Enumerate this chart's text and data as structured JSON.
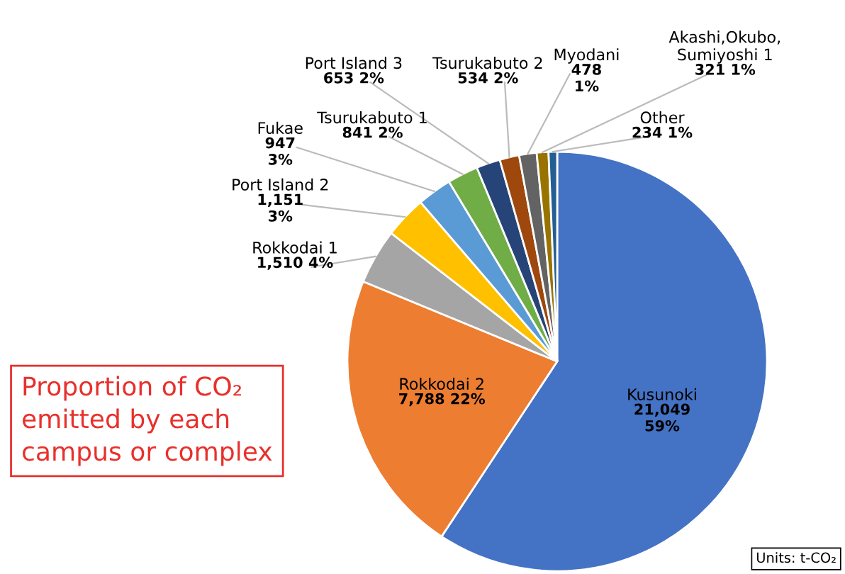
{
  "chart_data": {
    "type": "pie",
    "categories": [
      "Kusunoki",
      "Rokkodai 2",
      "Rokkodai 1",
      "Port Island 2",
      "Fukae",
      "Tsurukabuto 1",
      "Port Island 3",
      "Tsurukabuto 2",
      "Myodani",
      "Akashi,Okubo,\nSumiyoshi 1",
      "Other"
    ],
    "values": [
      21049,
      7788,
      1510,
      1151,
      947,
      841,
      653,
      534,
      478,
      321,
      234
    ],
    "value_labels": [
      "21,049\n59%",
      "7,788 22%",
      "1,510 4%",
      "1,151\n3%",
      "947\n3%",
      "841 2%",
      "653 2%",
      "534 2%",
      "478\n1%",
      "321 1%",
      "234 1%"
    ],
    "colors": [
      "#4472c4",
      "#ed7d31",
      "#a5a5a5",
      "#ffc000",
      "#5b9bd5",
      "#70ad47",
      "#264478",
      "#9e480e",
      "#636363",
      "#997300",
      "#255e91"
    ],
    "annotations": [
      "Proportion of CO₂\nemitted by each\ncampus or complex",
      "Units: t-CO₂"
    ],
    "legend": false
  }
}
